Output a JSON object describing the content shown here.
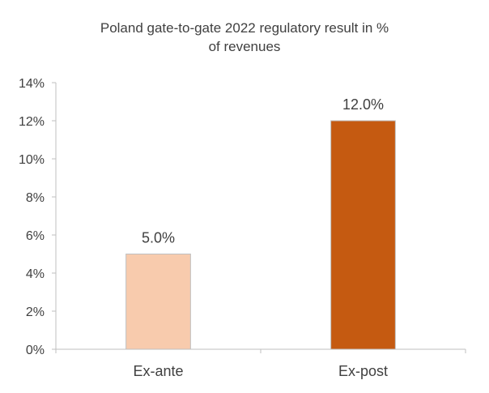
{
  "chart_data": {
    "type": "bar",
    "title_lines": [
      "Poland gate-to-gate 2022 regulatory result in %",
      "of revenues"
    ],
    "categories": [
      "Ex-ante",
      "Ex-post"
    ],
    "values": [
      5.0,
      12.0
    ],
    "data_labels": [
      "5.0%",
      "12.0%"
    ],
    "bar_colors": [
      "#f8cbad",
      "#c55a11"
    ],
    "ylim": [
      0,
      14
    ],
    "yticks": [
      0,
      2,
      4,
      6,
      8,
      10,
      12,
      14
    ],
    "ytick_labels": [
      "0%",
      "2%",
      "4%",
      "6%",
      "8%",
      "10%",
      "12%",
      "14%"
    ],
    "xlabel": "",
    "ylabel": "",
    "grid": false,
    "legend": "none"
  }
}
